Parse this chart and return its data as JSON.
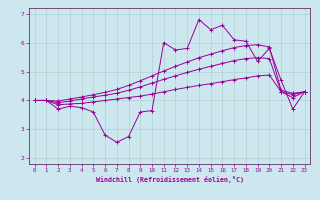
{
  "xlabel": "Windchill (Refroidissement éolien,°C)",
  "bg_color": "#cce8ee",
  "grid_color": "#aacccc",
  "line_color": "#990099",
  "spine_color": "#663366",
  "xlim": [
    -0.5,
    23.5
  ],
  "ylim": [
    1.8,
    7.2
  ],
  "xticks": [
    0,
    1,
    2,
    3,
    4,
    5,
    6,
    7,
    8,
    9,
    10,
    11,
    12,
    13,
    14,
    15,
    16,
    17,
    18,
    19,
    20,
    21,
    22,
    23
  ],
  "yticks": [
    2,
    3,
    4,
    5,
    6,
    7
  ],
  "series": [
    [
      4.0,
      4.0,
      3.7,
      3.8,
      3.75,
      3.6,
      2.8,
      2.55,
      2.75,
      3.6,
      3.65,
      6.0,
      5.75,
      5.8,
      6.8,
      6.45,
      6.6,
      6.1,
      6.05,
      5.35,
      5.8,
      4.7,
      3.7,
      4.3
    ],
    [
      4.0,
      4.0,
      3.85,
      3.88,
      3.9,
      3.95,
      4.0,
      4.05,
      4.1,
      4.15,
      4.22,
      4.3,
      4.38,
      4.45,
      4.52,
      4.58,
      4.65,
      4.72,
      4.78,
      4.85,
      4.88,
      4.3,
      4.1,
      4.3
    ],
    [
      4.0,
      4.0,
      3.92,
      3.98,
      4.05,
      4.12,
      4.18,
      4.25,
      4.35,
      4.47,
      4.6,
      4.73,
      4.85,
      4.97,
      5.08,
      5.18,
      5.28,
      5.38,
      5.45,
      5.48,
      5.45,
      4.3,
      4.2,
      4.3
    ],
    [
      4.0,
      4.0,
      3.98,
      4.05,
      4.12,
      4.2,
      4.28,
      4.38,
      4.52,
      4.68,
      4.85,
      5.02,
      5.18,
      5.33,
      5.48,
      5.6,
      5.72,
      5.83,
      5.9,
      5.93,
      5.85,
      4.35,
      4.25,
      4.3
    ]
  ]
}
